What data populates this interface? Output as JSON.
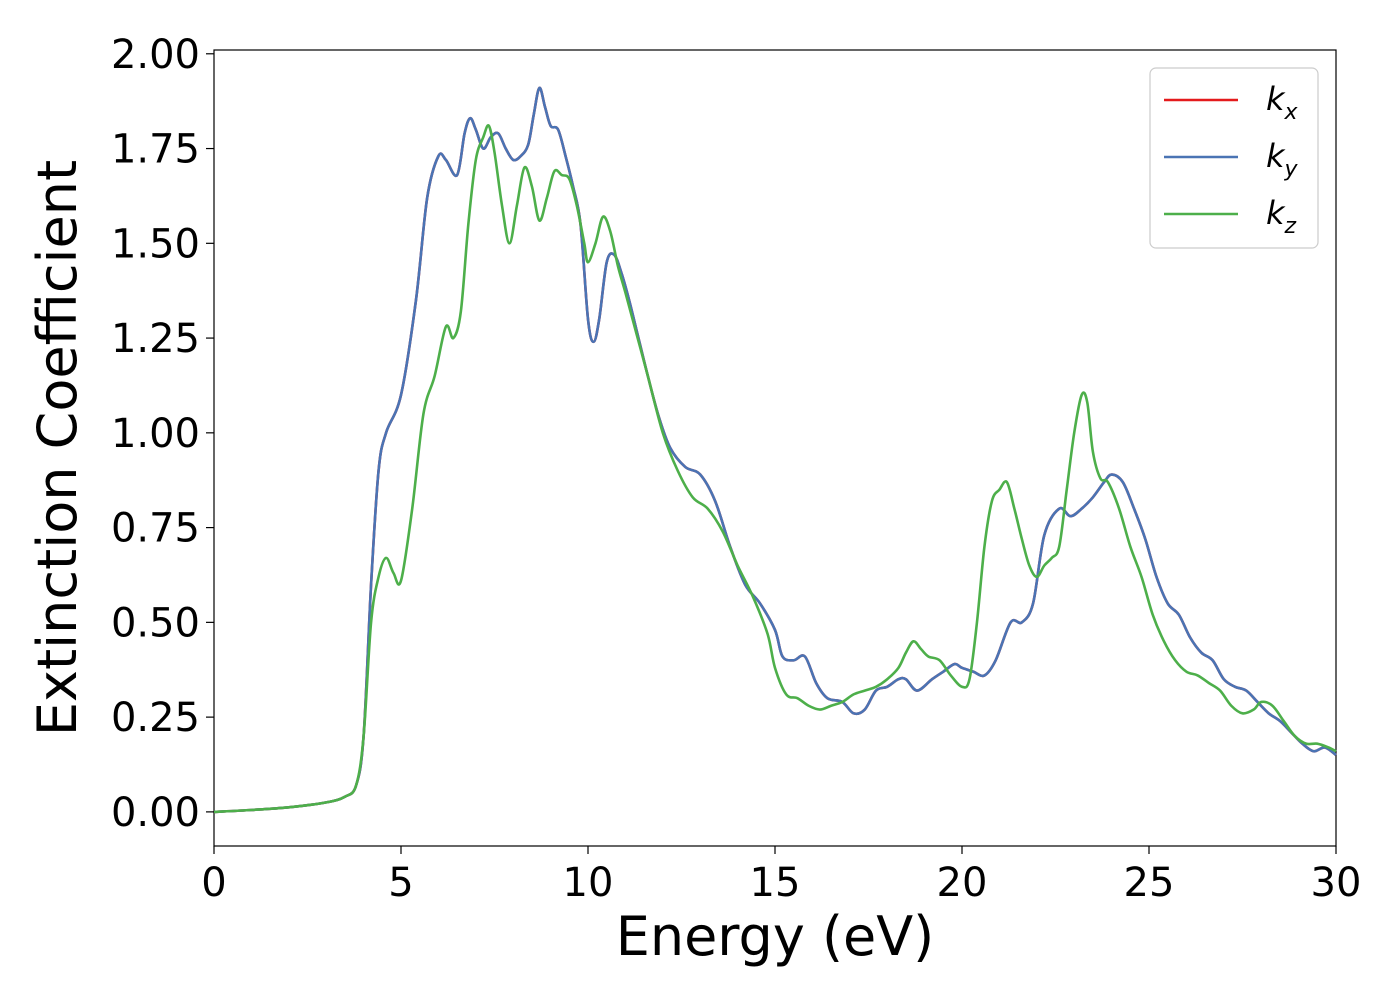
{
  "chart_data": {
    "type": "line",
    "title": "",
    "xlabel": "Energy (eV)",
    "ylabel": "Extinction Coefficient",
    "xlim": [
      0,
      30
    ],
    "ylim": [
      -0.09,
      2.01
    ],
    "xticks": [
      0,
      5,
      10,
      15,
      20,
      25,
      30
    ],
    "xtick_labels": [
      "0",
      "5",
      "10",
      "15",
      "20",
      "25",
      "30"
    ],
    "yticks": [
      0.0,
      0.25,
      0.5,
      0.75,
      1.0,
      1.25,
      1.5,
      1.75,
      2.0
    ],
    "ytick_labels": [
      "0.00",
      "0.25",
      "0.50",
      "0.75",
      "1.00",
      "1.25",
      "1.50",
      "1.75",
      "2.00"
    ],
    "grid": false,
    "legend_position": "top-right",
    "series": [
      {
        "name": "k",
        "sub": "x",
        "color": "#e41a1c",
        "x": [
          0,
          1,
          2,
          3,
          3.5,
          3.8,
          4.0,
          4.2,
          4.4,
          4.6,
          5.0,
          5.4,
          5.7,
          6.0,
          6.2,
          6.5,
          6.7,
          6.85,
          7.0,
          7.2,
          7.4,
          7.6,
          7.8,
          8.0,
          8.2,
          8.4,
          8.55,
          8.7,
          8.85,
          9.0,
          9.2,
          9.4,
          9.6,
          9.8,
          10.0,
          10.15,
          10.3,
          10.5,
          10.7,
          10.9,
          11.1,
          11.3,
          11.6,
          11.9,
          12.2,
          12.6,
          13.0,
          13.4,
          13.8,
          14.2,
          14.6,
          15.0,
          15.2,
          15.5,
          15.8,
          16.1,
          16.4,
          16.8,
          17.1,
          17.4,
          17.7,
          18.0,
          18.3,
          18.5,
          18.8,
          19.2,
          19.5,
          19.8,
          20.0,
          20.3,
          20.6,
          20.9,
          21.3,
          21.6,
          21.9,
          22.2,
          22.6,
          22.9,
          23.2,
          23.5,
          23.8,
          24.0,
          24.3,
          24.6,
          24.9,
          25.2,
          25.5,
          25.8,
          26.1,
          26.4,
          26.7,
          27.0,
          27.3,
          27.6,
          27.9,
          28.2,
          28.5,
          28.8,
          29.1,
          29.4,
          29.7,
          30.0
        ],
        "y": [
          0.0,
          0.005,
          0.012,
          0.025,
          0.04,
          0.07,
          0.2,
          0.6,
          0.9,
          1.0,
          1.1,
          1.35,
          1.62,
          1.73,
          1.72,
          1.68,
          1.79,
          1.83,
          1.8,
          1.75,
          1.78,
          1.79,
          1.75,
          1.72,
          1.73,
          1.76,
          1.84,
          1.91,
          1.86,
          1.81,
          1.8,
          1.73,
          1.65,
          1.55,
          1.3,
          1.24,
          1.3,
          1.45,
          1.47,
          1.42,
          1.35,
          1.27,
          1.15,
          1.04,
          0.96,
          0.91,
          0.89,
          0.82,
          0.7,
          0.6,
          0.55,
          0.48,
          0.41,
          0.4,
          0.41,
          0.34,
          0.3,
          0.29,
          0.26,
          0.27,
          0.32,
          0.33,
          0.35,
          0.35,
          0.32,
          0.35,
          0.37,
          0.39,
          0.38,
          0.37,
          0.36,
          0.4,
          0.5,
          0.5,
          0.55,
          0.73,
          0.8,
          0.78,
          0.8,
          0.83,
          0.87,
          0.89,
          0.87,
          0.8,
          0.72,
          0.62,
          0.55,
          0.52,
          0.46,
          0.42,
          0.4,
          0.35,
          0.33,
          0.32,
          0.29,
          0.26,
          0.24,
          0.21,
          0.18,
          0.16,
          0.17,
          0.15
        ]
      },
      {
        "name": "k",
        "sub": "y",
        "color": "#4a74b4",
        "x": [
          0,
          1,
          2,
          3,
          3.5,
          3.8,
          4.0,
          4.2,
          4.4,
          4.6,
          5.0,
          5.4,
          5.7,
          6.0,
          6.2,
          6.5,
          6.7,
          6.85,
          7.0,
          7.2,
          7.4,
          7.6,
          7.8,
          8.0,
          8.2,
          8.4,
          8.55,
          8.7,
          8.85,
          9.0,
          9.2,
          9.4,
          9.6,
          9.8,
          10.0,
          10.15,
          10.3,
          10.5,
          10.7,
          10.9,
          11.1,
          11.3,
          11.6,
          11.9,
          12.2,
          12.6,
          13.0,
          13.4,
          13.8,
          14.2,
          14.6,
          15.0,
          15.2,
          15.5,
          15.8,
          16.1,
          16.4,
          16.8,
          17.1,
          17.4,
          17.7,
          18.0,
          18.3,
          18.5,
          18.8,
          19.2,
          19.5,
          19.8,
          20.0,
          20.3,
          20.6,
          20.9,
          21.3,
          21.6,
          21.9,
          22.2,
          22.6,
          22.9,
          23.2,
          23.5,
          23.8,
          24.0,
          24.3,
          24.6,
          24.9,
          25.2,
          25.5,
          25.8,
          26.1,
          26.4,
          26.7,
          27.0,
          27.3,
          27.6,
          27.9,
          28.2,
          28.5,
          28.8,
          29.1,
          29.4,
          29.7,
          30.0
        ],
        "y": [
          0.0,
          0.005,
          0.012,
          0.025,
          0.04,
          0.07,
          0.2,
          0.6,
          0.9,
          1.0,
          1.1,
          1.35,
          1.62,
          1.73,
          1.72,
          1.68,
          1.79,
          1.83,
          1.8,
          1.75,
          1.78,
          1.79,
          1.75,
          1.72,
          1.73,
          1.76,
          1.84,
          1.91,
          1.86,
          1.81,
          1.8,
          1.73,
          1.65,
          1.55,
          1.3,
          1.24,
          1.3,
          1.45,
          1.47,
          1.42,
          1.35,
          1.27,
          1.15,
          1.04,
          0.96,
          0.91,
          0.89,
          0.82,
          0.7,
          0.6,
          0.55,
          0.48,
          0.41,
          0.4,
          0.41,
          0.34,
          0.3,
          0.29,
          0.26,
          0.27,
          0.32,
          0.33,
          0.35,
          0.35,
          0.32,
          0.35,
          0.37,
          0.39,
          0.38,
          0.37,
          0.36,
          0.4,
          0.5,
          0.5,
          0.55,
          0.73,
          0.8,
          0.78,
          0.8,
          0.83,
          0.87,
          0.89,
          0.87,
          0.8,
          0.72,
          0.62,
          0.55,
          0.52,
          0.46,
          0.42,
          0.4,
          0.35,
          0.33,
          0.32,
          0.29,
          0.26,
          0.24,
          0.21,
          0.18,
          0.16,
          0.17,
          0.15
        ]
      },
      {
        "name": "k",
        "sub": "z",
        "color": "#4daf4a",
        "x": [
          0,
          1,
          2,
          3,
          3.5,
          3.8,
          4.0,
          4.2,
          4.4,
          4.6,
          4.8,
          5.0,
          5.3,
          5.6,
          5.9,
          6.2,
          6.4,
          6.6,
          6.8,
          7.0,
          7.2,
          7.35,
          7.5,
          7.7,
          7.9,
          8.1,
          8.3,
          8.5,
          8.7,
          8.9,
          9.1,
          9.3,
          9.5,
          9.7,
          9.9,
          10.0,
          10.2,
          10.4,
          10.6,
          10.8,
          11.0,
          11.3,
          11.6,
          12.0,
          12.4,
          12.8,
          13.2,
          13.6,
          14.0,
          14.4,
          14.8,
          15.0,
          15.3,
          15.6,
          15.9,
          16.2,
          16.5,
          16.8,
          17.1,
          17.4,
          17.7,
          18.0,
          18.3,
          18.5,
          18.7,
          18.9,
          19.1,
          19.4,
          19.7,
          20.0,
          20.2,
          20.4,
          20.6,
          20.8,
          21.0,
          21.2,
          21.4,
          21.6,
          21.8,
          22.0,
          22.2,
          22.4,
          22.6,
          22.8,
          23.0,
          23.2,
          23.35,
          23.5,
          23.7,
          23.9,
          24.2,
          24.5,
          24.8,
          25.1,
          25.4,
          25.7,
          26.0,
          26.3,
          26.6,
          26.9,
          27.2,
          27.5,
          27.8,
          28.0,
          28.3,
          28.6,
          28.9,
          29.2,
          29.5,
          29.8,
          30.0
        ],
        "y": [
          0.0,
          0.005,
          0.012,
          0.025,
          0.04,
          0.07,
          0.2,
          0.5,
          0.62,
          0.67,
          0.63,
          0.61,
          0.8,
          1.05,
          1.15,
          1.28,
          1.25,
          1.32,
          1.55,
          1.72,
          1.78,
          1.81,
          1.74,
          1.6,
          1.5,
          1.6,
          1.7,
          1.65,
          1.56,
          1.62,
          1.69,
          1.68,
          1.67,
          1.6,
          1.5,
          1.45,
          1.5,
          1.57,
          1.53,
          1.44,
          1.37,
          1.26,
          1.15,
          1.0,
          0.9,
          0.83,
          0.8,
          0.74,
          0.65,
          0.57,
          0.47,
          0.38,
          0.31,
          0.3,
          0.28,
          0.27,
          0.28,
          0.29,
          0.31,
          0.32,
          0.33,
          0.35,
          0.38,
          0.42,
          0.45,
          0.43,
          0.41,
          0.4,
          0.36,
          0.33,
          0.35,
          0.5,
          0.7,
          0.82,
          0.85,
          0.87,
          0.8,
          0.72,
          0.65,
          0.62,
          0.65,
          0.67,
          0.7,
          0.85,
          1.0,
          1.1,
          1.08,
          0.95,
          0.88,
          0.87,
          0.8,
          0.7,
          0.62,
          0.52,
          0.45,
          0.4,
          0.37,
          0.36,
          0.34,
          0.32,
          0.28,
          0.26,
          0.27,
          0.29,
          0.28,
          0.24,
          0.2,
          0.18,
          0.18,
          0.17,
          0.16
        ]
      }
    ]
  }
}
